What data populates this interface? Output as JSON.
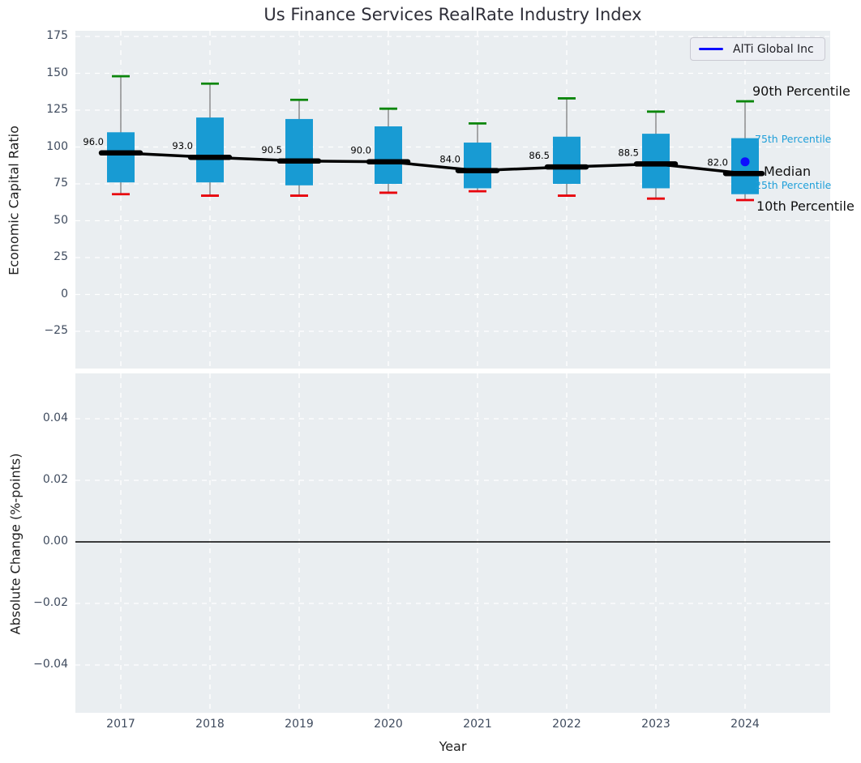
{
  "chart": {
    "title": "Us Finance Services RealRate Industry Index",
    "legend": {
      "label": "AlTi Global Inc"
    },
    "annotations": {
      "p90": "90th Percentile",
      "p75": "75th Percentile",
      "median": "Median",
      "p25": "25th Percentile",
      "p10": "10th Percentile"
    }
  },
  "chart_data": [
    {
      "type": "boxplot",
      "title": "Us Finance Services RealRate Industry Index",
      "xlabel": "Year",
      "ylabel": "Economic Capital Ratio",
      "categories": [
        "2017",
        "2018",
        "2019",
        "2020",
        "2021",
        "2022",
        "2023",
        "2024"
      ],
      "yticks": [
        {
          "label": "175",
          "value": 175
        },
        {
          "label": "150",
          "value": 150
        },
        {
          "label": "125",
          "value": 125
        },
        {
          "label": "100",
          "value": 100
        },
        {
          "label": "75",
          "value": 75
        },
        {
          "label": "50",
          "value": 50
        },
        {
          "label": "25",
          "value": 25
        },
        {
          "label": "0",
          "value": 0
        },
        {
          "label": "−25",
          "value": -25
        }
      ],
      "ylim": [
        -50,
        178
      ],
      "grid": true,
      "legend_position": "upper right",
      "boxes": [
        {
          "year": "2017",
          "p10": 68,
          "p25": 76,
          "median": 96.0,
          "p75": 110,
          "p90": 148
        },
        {
          "year": "2018",
          "p10": 67,
          "p25": 76,
          "median": 93.0,
          "p75": 120,
          "p90": 143
        },
        {
          "year": "2019",
          "p10": 67,
          "p25": 74,
          "median": 90.5,
          "p75": 119,
          "p90": 132
        },
        {
          "year": "2020",
          "p10": 69,
          "p25": 75,
          "median": 90.0,
          "p75": 114,
          "p90": 126
        },
        {
          "year": "2021",
          "p10": 70,
          "p25": 72,
          "median": 84.0,
          "p75": 103,
          "p90": 116
        },
        {
          "year": "2022",
          "p10": 67,
          "p25": 75,
          "median": 86.5,
          "p75": 107,
          "p90": 133
        },
        {
          "year": "2023",
          "p10": 65,
          "p25": 72,
          "median": 88.5,
          "p75": 109,
          "p90": 124
        },
        {
          "year": "2024",
          "p10": 64,
          "p25": 68,
          "median": 82.0,
          "p75": 106,
          "p90": 131
        }
      ],
      "median_value_labels": [
        "96.0",
        "93.0",
        "90.5",
        "90.0",
        "84.0",
        "86.5",
        "88.5",
        "82.0"
      ],
      "company_point": {
        "name": "AlTi Global Inc",
        "year": "2024",
        "value": 90
      },
      "percentile_annotations": [
        "90th Percentile",
        "75th Percentile",
        "Median",
        "25th Percentile",
        "10th Percentile"
      ],
      "colors": {
        "box_fill": "#189bd3",
        "whisker": "#7d7d7d",
        "cap_top": "#0b860b",
        "cap_bottom": "#e8000b",
        "median_line": "#000000",
        "company_point": "#0d0dff",
        "annotation_accent": "#1f9fd9",
        "plot_background": "#eaeef1"
      }
    },
    {
      "type": "line",
      "xlabel": "Year",
      "ylabel": "Absolute Change (%-points)",
      "categories": [
        "2017",
        "2018",
        "2019",
        "2020",
        "2021",
        "2022",
        "2023",
        "2024"
      ],
      "yticks": [
        {
          "label": "0.04",
          "value": 0.04
        },
        {
          "label": "0.02",
          "value": 0.02
        },
        {
          "label": "0.00",
          "value": 0.0
        },
        {
          "label": "−0.02",
          "value": -0.02
        },
        {
          "label": "−0.04",
          "value": -0.04
        }
      ],
      "ylim": [
        -0.0555,
        0.0547
      ],
      "zero_line": 0.0,
      "grid": true,
      "series": []
    }
  ]
}
